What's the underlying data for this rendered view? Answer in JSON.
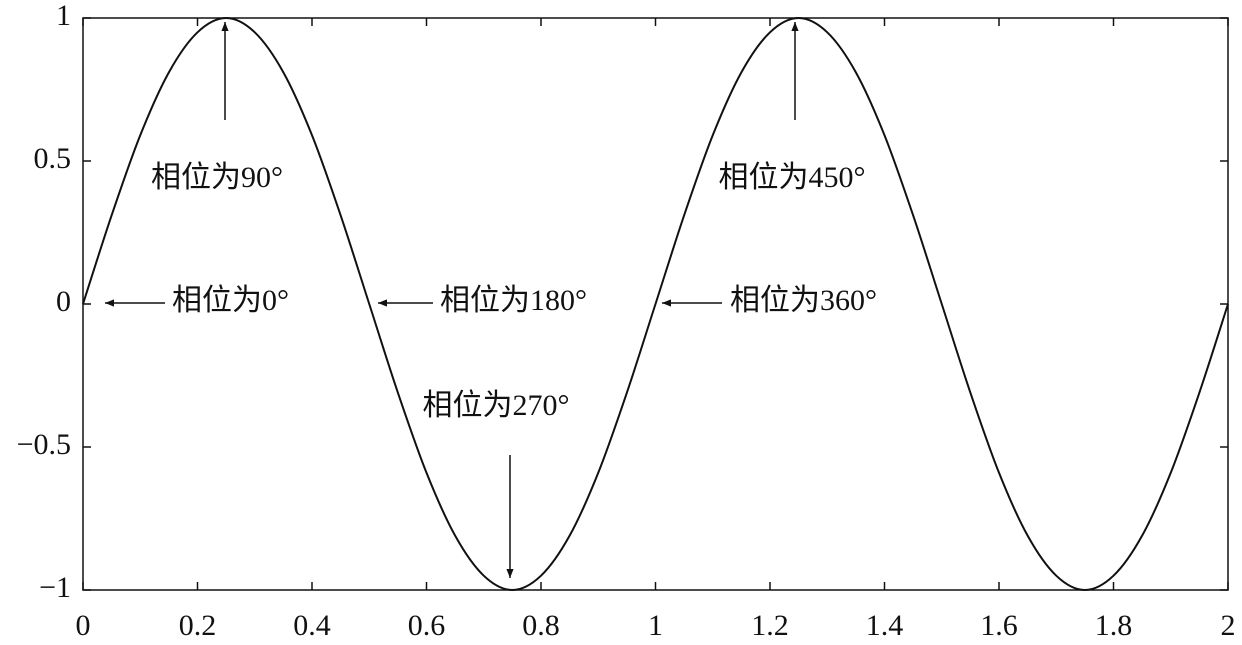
{
  "chart_data": {
    "type": "line",
    "x": [
      0,
      0.05,
      0.1,
      0.15,
      0.2,
      0.25,
      0.3,
      0.35,
      0.4,
      0.45,
      0.5,
      0.55,
      0.6,
      0.65,
      0.7,
      0.75,
      0.8,
      0.85,
      0.9,
      0.95,
      1,
      1.05,
      1.1,
      1.15,
      1.2,
      1.25,
      1.3,
      1.35,
      1.4,
      1.45,
      1.5,
      1.55,
      1.6,
      1.65,
      1.7,
      1.75,
      1.8,
      1.85,
      1.9,
      1.95,
      2
    ],
    "values": [
      0,
      0.31,
      0.59,
      0.81,
      0.95,
      1,
      0.95,
      0.81,
      0.59,
      0.31,
      0,
      -0.31,
      -0.59,
      -0.81,
      -0.95,
      -1,
      -0.95,
      -0.81,
      -0.59,
      -0.31,
      0,
      0.31,
      0.59,
      0.81,
      0.95,
      1,
      0.95,
      0.81,
      0.59,
      0.31,
      0,
      -0.31,
      -0.59,
      -0.81,
      -0.95,
      -1,
      -0.95,
      -0.81,
      -0.59,
      -0.31,
      0
    ],
    "color": "#111111",
    "xlim": [
      0,
      2
    ],
    "xticks": [
      0,
      0.2,
      0.4,
      0.6,
      0.8,
      1,
      1.2,
      1.4,
      1.6,
      1.8,
      2
    ],
    "ylim": [
      -1,
      1
    ],
    "yticks": [
      {
        "value": -1,
        "label": "−1"
      },
      {
        "value": -0.5,
        "label": "−0.5"
      },
      0,
      0.5,
      1
    ],
    "annotations": [
      "相位为90°",
      "相位为450°",
      "相位为0°",
      "相位为180°",
      "相位为360°",
      "相位为270°"
    ]
  }
}
